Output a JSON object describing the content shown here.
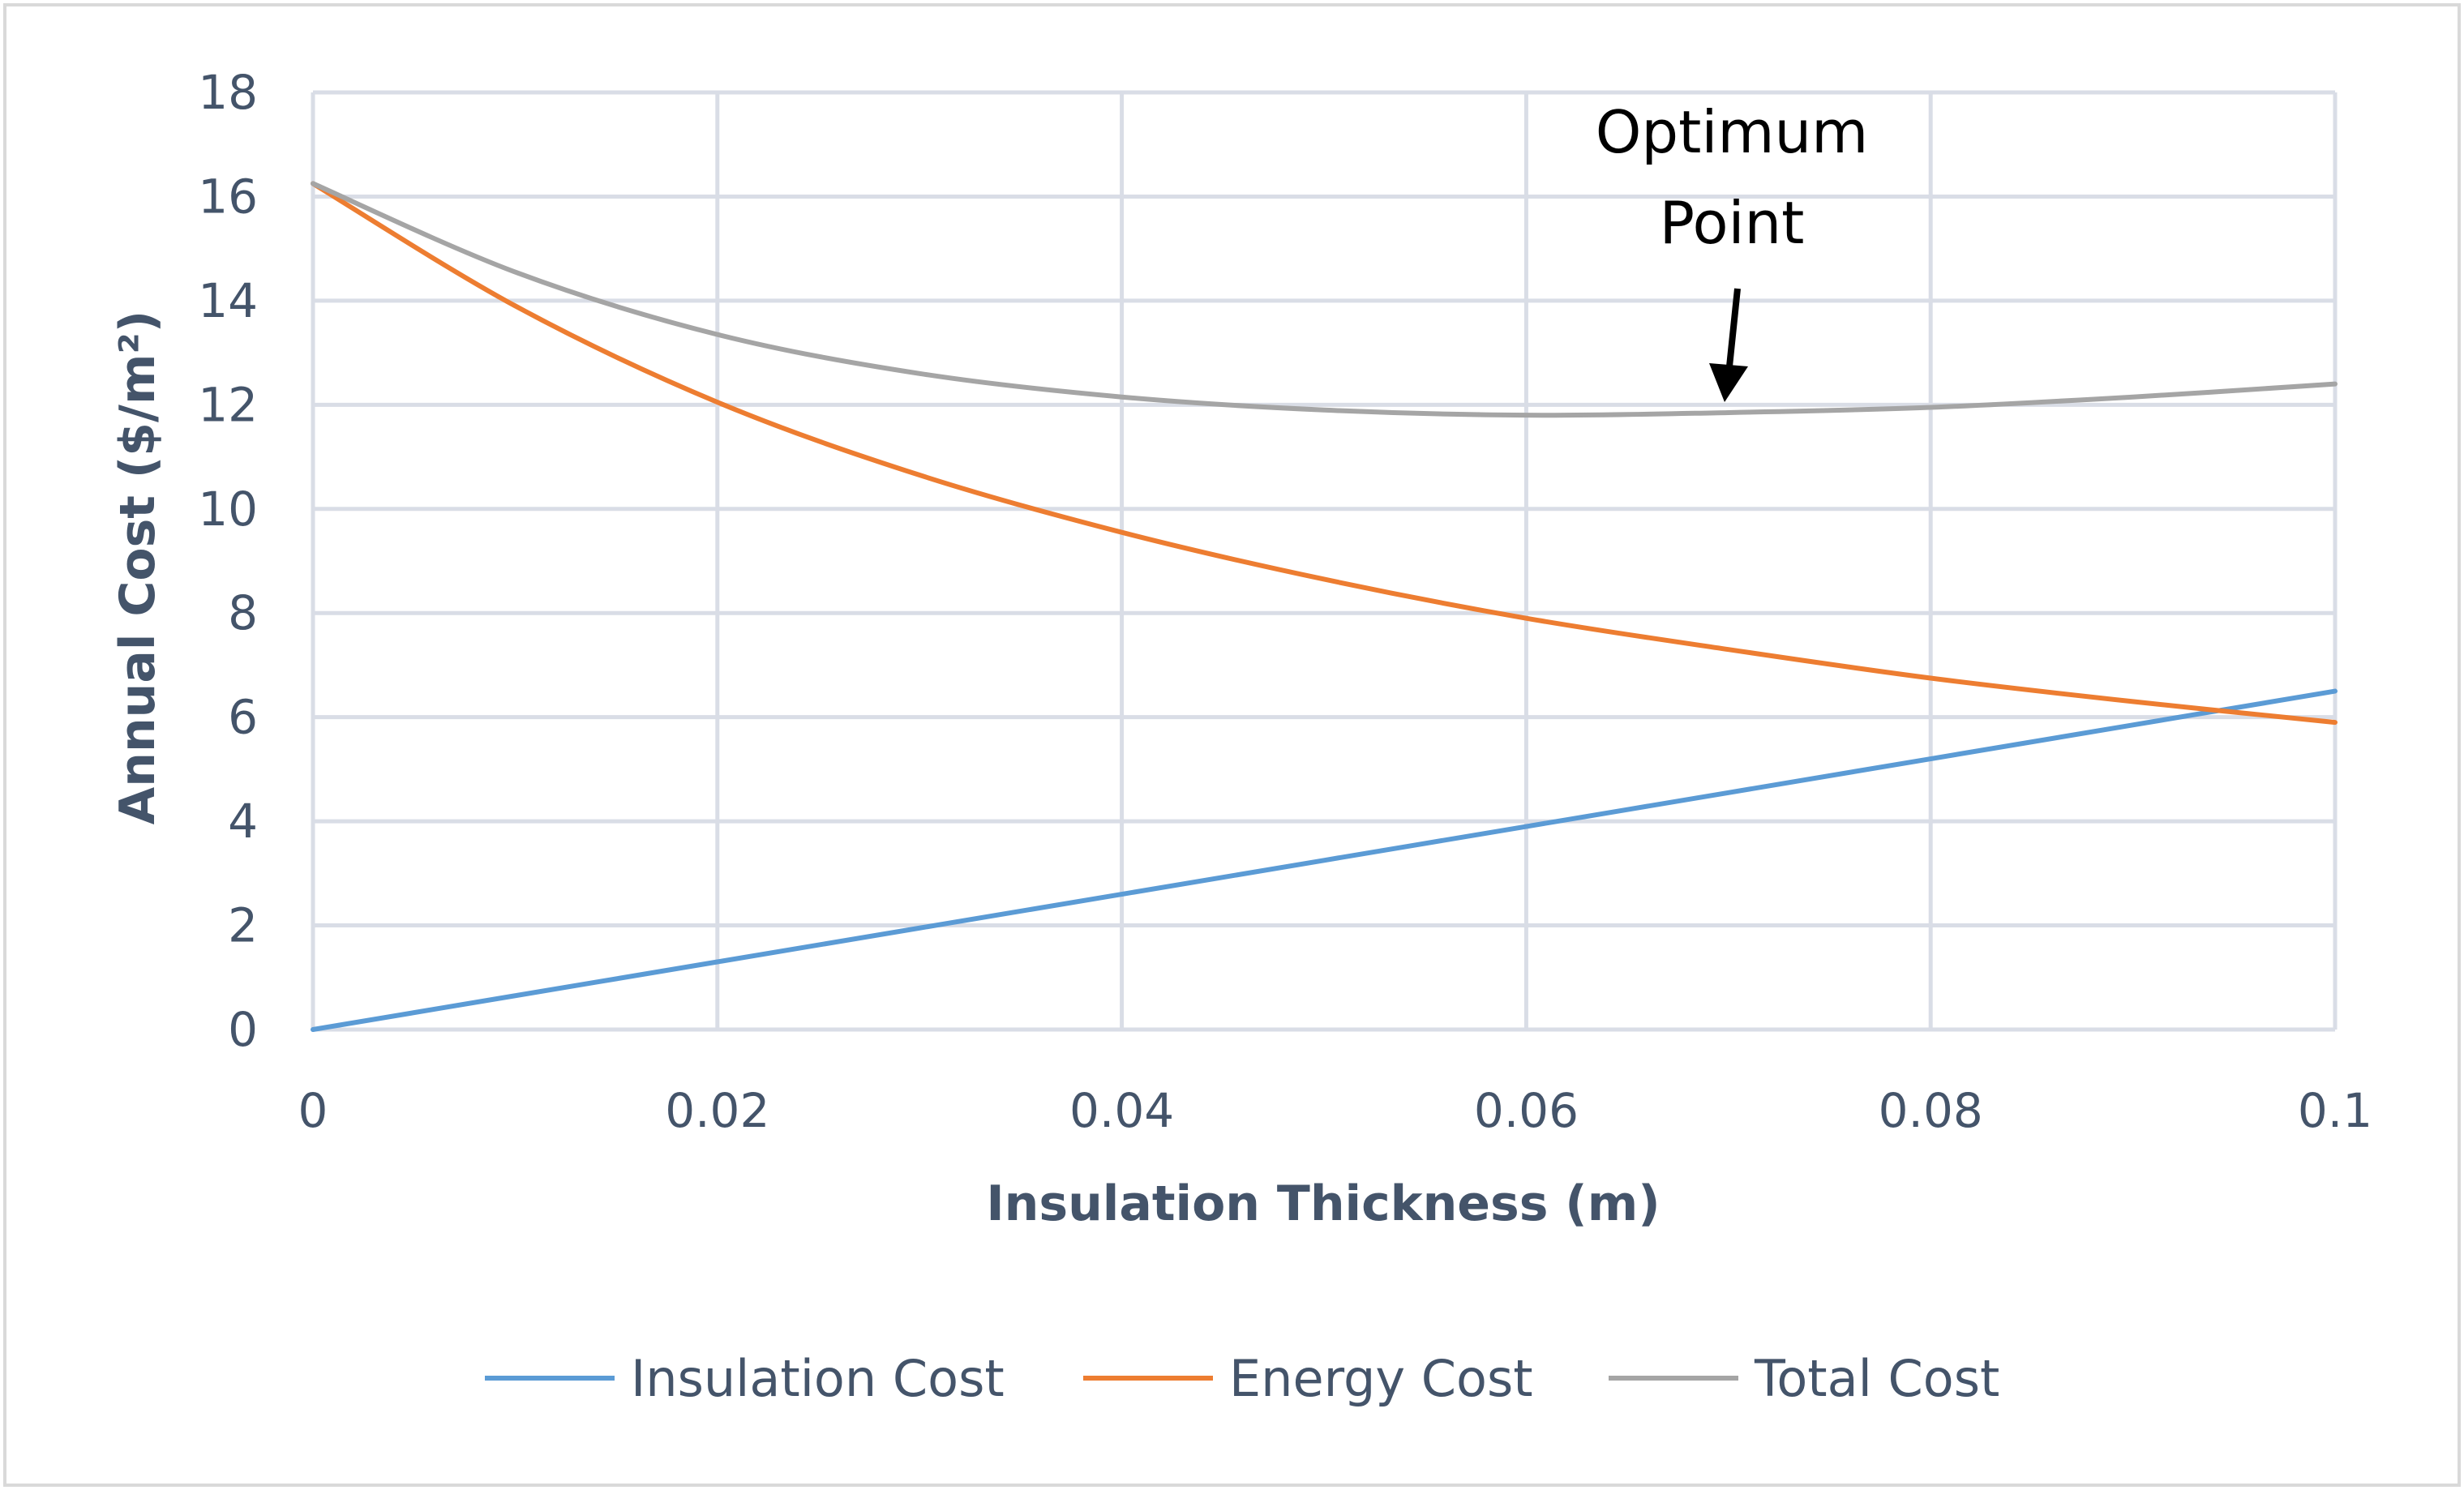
{
  "chart_data": {
    "type": "line",
    "title": "",
    "xlabel": "Insulation Thickness (m)",
    "ylabel": "Annual Cost ($/m²)",
    "xlim": [
      0,
      0.1
    ],
    "ylim": [
      0,
      18
    ],
    "grid": true,
    "legend_position": "bottom",
    "x_ticks": [
      {
        "value": 0,
        "label": "0"
      },
      {
        "value": 0.02,
        "label": "0.02"
      },
      {
        "value": 0.04,
        "label": "0.04"
      },
      {
        "value": 0.06,
        "label": "0.06"
      },
      {
        "value": 0.08,
        "label": "0.08"
      },
      {
        "value": 0.1,
        "label": "0.1"
      }
    ],
    "y_ticks": [
      {
        "value": 0,
        "label": "0"
      },
      {
        "value": 2,
        "label": "2"
      },
      {
        "value": 4,
        "label": "4"
      },
      {
        "value": 6,
        "label": "6"
      },
      {
        "value": 8,
        "label": "8"
      },
      {
        "value": 10,
        "label": "10"
      },
      {
        "value": 12,
        "label": "12"
      },
      {
        "value": 14,
        "label": "14"
      },
      {
        "value": 16,
        "label": "16"
      },
      {
        "value": 18,
        "label": "18"
      }
    ],
    "x": [
      0,
      0.01,
      0.02,
      0.03,
      0.04,
      0.05,
      0.06,
      0.07,
      0.08,
      0.09,
      0.1
    ],
    "series": [
      {
        "name": "Insulation Cost",
        "color": "#5b9bd5",
        "values": [
          0,
          0.65,
          1.3,
          1.95,
          2.6,
          3.25,
          3.9,
          4.55,
          5.2,
          5.85,
          6.5
        ]
      },
      {
        "name": "Energy Cost",
        "color": "#ed7d31",
        "values": [
          16.25,
          13.9,
          12.05,
          10.65,
          9.55,
          8.65,
          7.9,
          7.3,
          6.75,
          6.3,
          5.9
        ]
      },
      {
        "name": "Total Cost",
        "color": "#a5a5a5",
        "values": [
          16.25,
          14.55,
          13.35,
          12.6,
          12.15,
          11.9,
          11.8,
          11.85,
          11.95,
          12.15,
          12.4
        ]
      }
    ],
    "annotations": [
      {
        "text_lines": [
          "Optimum",
          "Point"
        ],
        "x": 0.07,
        "y": 11.85
      }
    ]
  }
}
